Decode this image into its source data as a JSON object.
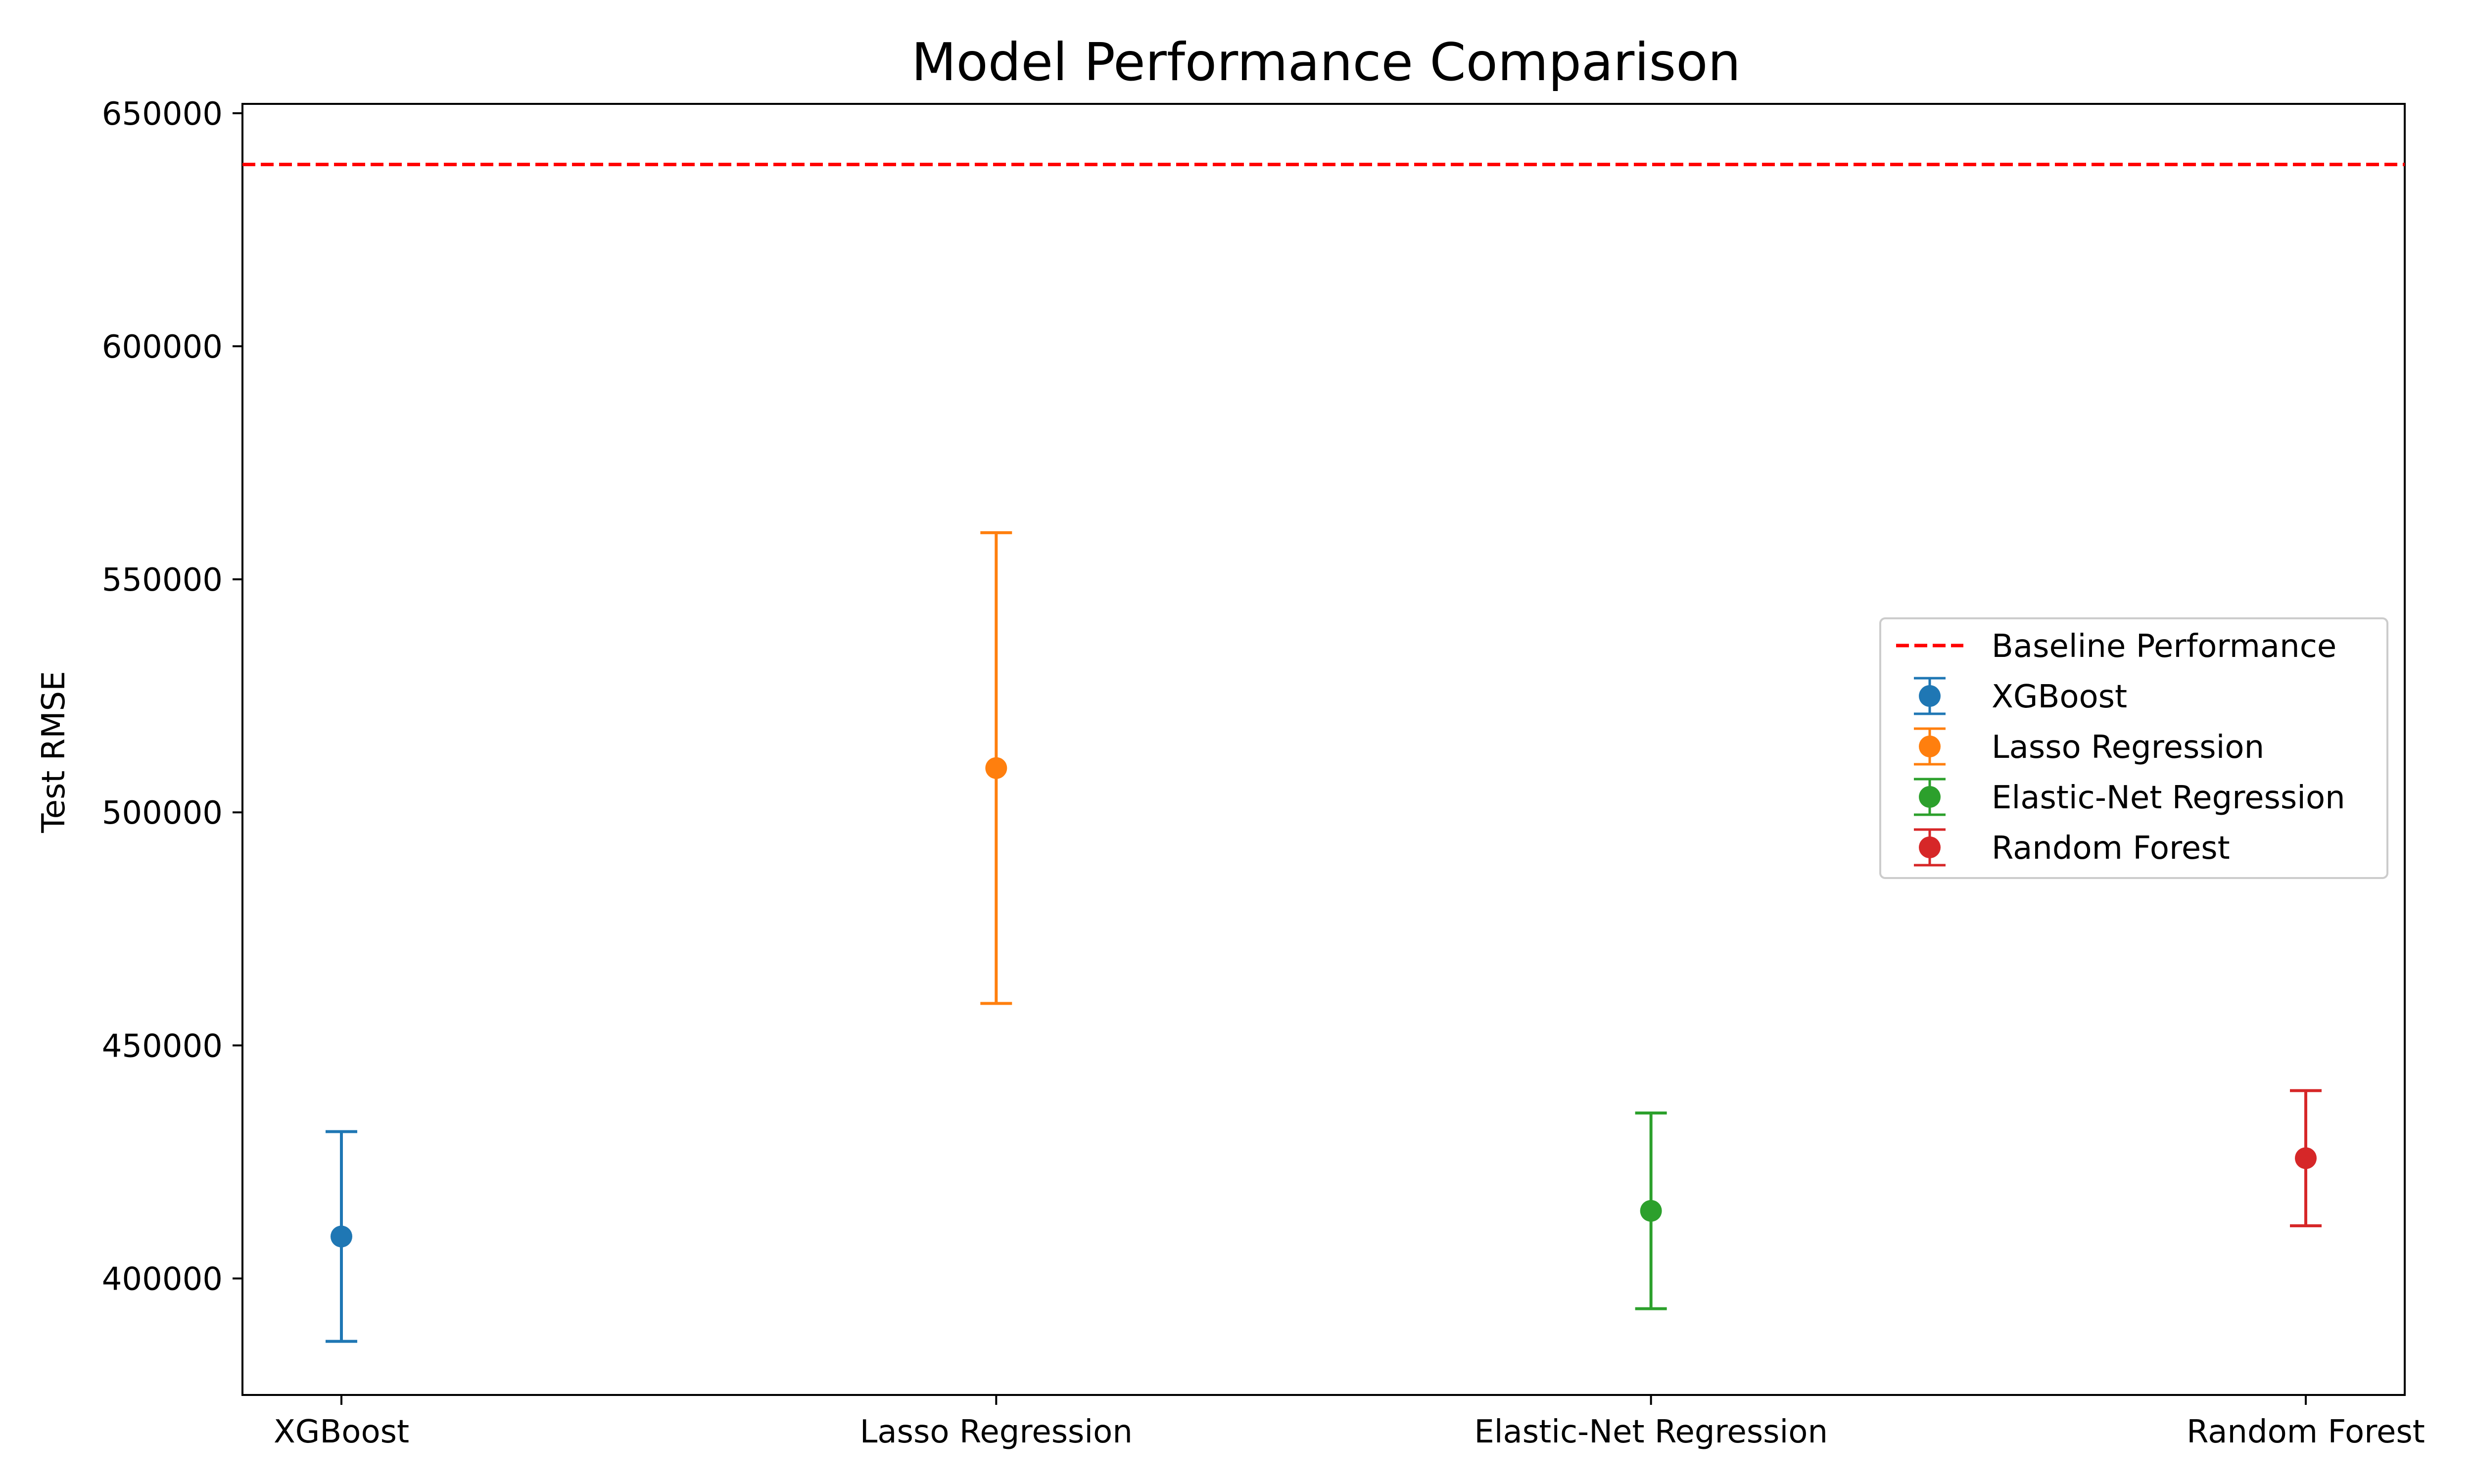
{
  "chart_data": {
    "type": "scatter",
    "title": "Model Performance Comparison",
    "xlabel": "",
    "ylabel": "Test RMSE",
    "categories": [
      "XGBoost",
      "Lasso Regression",
      "Elastic-Net Regression",
      "Random Forest"
    ],
    "yticks": [
      "400000",
      "450000",
      "500000",
      "550000",
      "600000",
      "650000"
    ],
    "ylim": [
      375000,
      652000
    ],
    "grid": false,
    "legend_position": "center-right",
    "baseline": {
      "name": "Baseline Performance",
      "value": 639000,
      "color": "#ff0000",
      "style": "dashed"
    },
    "series": [
      {
        "name": "XGBoost",
        "category": "XGBoost",
        "value": 409000,
        "error": 22500,
        "color": "#1f77b4"
      },
      {
        "name": "Lasso Regression",
        "category": "Lasso Regression",
        "value": 509500,
        "error": 50500,
        "color": "#ff7f0e"
      },
      {
        "name": "Elastic-Net Regression",
        "category": "Elastic-Net Regression",
        "value": 414500,
        "error": 21000,
        "color": "#2ca02c"
      },
      {
        "name": "Random Forest",
        "category": "Random Forest",
        "value": 425800,
        "error": 14500,
        "color": "#d62728"
      }
    ]
  }
}
